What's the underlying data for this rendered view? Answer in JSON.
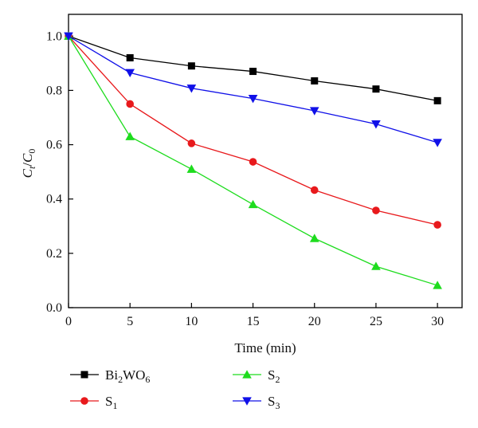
{
  "chart_data": {
    "type": "line",
    "title": "",
    "xlabel": "Time (min)",
    "ylabel": {
      "main": "C",
      "sub_t": "t",
      "slash": "/",
      "main2": "C",
      "sub_0": "0"
    },
    "x": [
      0,
      5,
      10,
      15,
      20,
      25,
      30
    ],
    "xlim": [
      0,
      32
    ],
    "ylim": [
      0,
      1.08
    ],
    "x_ticks": [
      0,
      5,
      10,
      15,
      20,
      25,
      30
    ],
    "y_ticks": [
      0.0,
      0.2,
      0.4,
      0.6,
      0.8,
      1.0
    ],
    "grid": false,
    "legend_placement": "bottom",
    "series": [
      {
        "name": "Bi2WO6",
        "name_parts": [
          "Bi",
          "2",
          "WO",
          "6"
        ],
        "marker": "square",
        "color": "#000000",
        "values": [
          1.0,
          0.92,
          0.89,
          0.87,
          0.835,
          0.805,
          0.762
        ]
      },
      {
        "name": "S1",
        "name_parts": [
          "S",
          "1"
        ],
        "marker": "circle",
        "color": "#e8191c",
        "values": [
          1.0,
          0.75,
          0.605,
          0.537,
          0.433,
          0.358,
          0.305
        ]
      },
      {
        "name": "S2",
        "name_parts": [
          "S",
          "2"
        ],
        "marker": "triangle-up",
        "color": "#1edc1e",
        "values": [
          1.0,
          0.63,
          0.51,
          0.38,
          0.255,
          0.152,
          0.082
        ]
      },
      {
        "name": "S3",
        "name_parts": [
          "S",
          "3"
        ],
        "marker": "triangle-down",
        "color": "#1010e8",
        "values": [
          1.0,
          0.865,
          0.808,
          0.77,
          0.725,
          0.676,
          0.608
        ]
      }
    ]
  }
}
